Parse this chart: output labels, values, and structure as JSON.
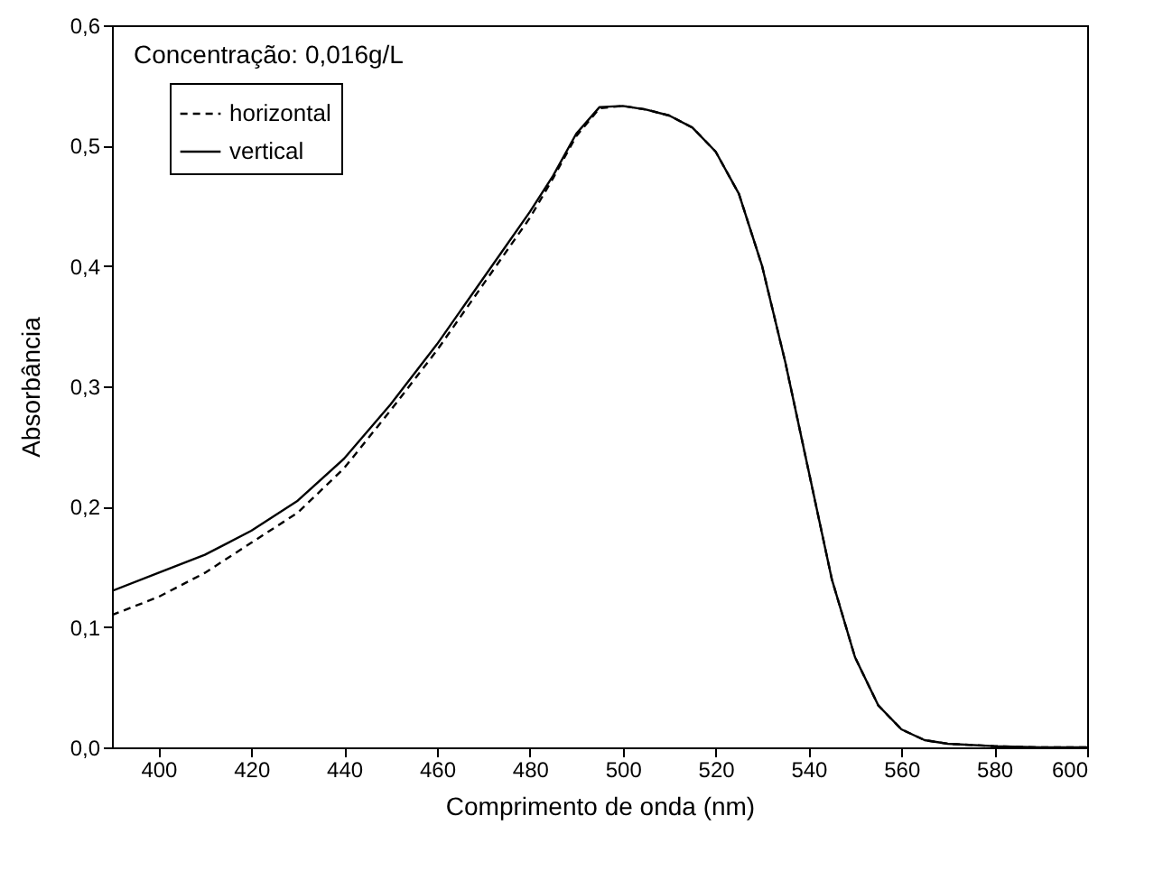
{
  "chart_data": {
    "type": "line",
    "xlabel": "Comprimento de onda (nm)",
    "ylabel": "Absorbância",
    "annotations": [
      "Concentração: 0,016g/L"
    ],
    "x": [
      390,
      400,
      410,
      420,
      430,
      440,
      450,
      460,
      470,
      480,
      485,
      490,
      495,
      500,
      505,
      510,
      515,
      520,
      525,
      530,
      535,
      540,
      545,
      550,
      555,
      560,
      565,
      570,
      580,
      590,
      600
    ],
    "series": [
      {
        "name": "horizontal",
        "color": "#000000",
        "line_style": "dashed",
        "values": [
          0.11,
          0.125,
          0.145,
          0.17,
          0.195,
          0.232,
          0.28,
          0.33,
          0.385,
          0.44,
          0.473,
          0.508,
          0.531,
          0.533,
          0.53,
          0.525,
          0.515,
          0.495,
          0.46,
          0.4,
          0.32,
          0.23,
          0.14,
          0.075,
          0.035,
          0.015,
          0.006,
          0.003,
          0.001,
          0,
          0
        ]
      },
      {
        "name": "vertical",
        "color": "#000000",
        "line_style": "solid",
        "values": [
          0.13,
          0.145,
          0.16,
          0.18,
          0.205,
          0.24,
          0.285,
          0.335,
          0.39,
          0.445,
          0.475,
          0.51,
          0.532,
          0.533,
          0.53,
          0.525,
          0.515,
          0.495,
          0.46,
          0.4,
          0.32,
          0.23,
          0.14,
          0.075,
          0.035,
          0.015,
          0.006,
          0.003,
          0.001,
          0,
          0
        ]
      }
    ],
    "xlim": [
      390,
      600
    ],
    "xticks": [
      400,
      420,
      440,
      460,
      480,
      500,
      520,
      540,
      560,
      580,
      600
    ],
    "ylim": [
      0,
      0.6
    ],
    "yticks": [
      {
        "value": 0,
        "label": "0,0"
      },
      {
        "value": 0.1,
        "label": "0,1"
      },
      {
        "value": 0.2,
        "label": "0,2"
      },
      {
        "value": 0.3,
        "label": "0,3"
      },
      {
        "value": 0.4,
        "label": "0,4"
      },
      {
        "value": 0.5,
        "label": "0,5"
      },
      {
        "value": 0.6,
        "label": "0,6"
      }
    ],
    "legend": "top left",
    "grid": false,
    "marker": "none"
  }
}
